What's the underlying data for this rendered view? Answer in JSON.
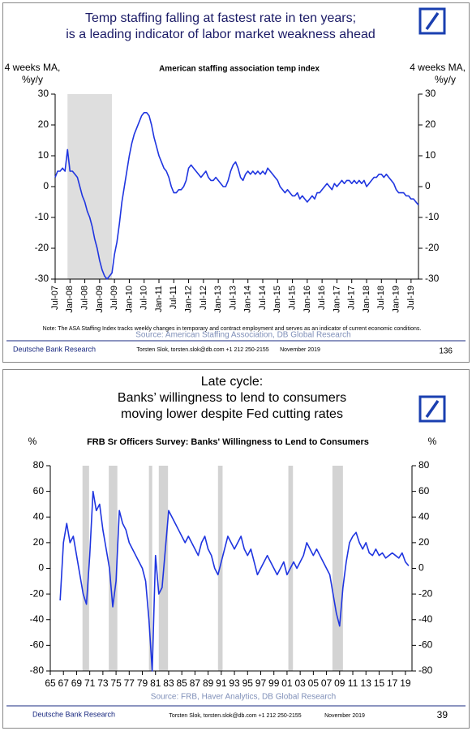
{
  "chart_data": [
    {
      "type": "line",
      "title": [
        "Temp staffing falling at fastest rate in ten years;",
        "is a leading indicator of labor market weakness ahead"
      ],
      "subtitle": "American staffing association temp index",
      "y_label": [
        "4 weeks MA,",
        "%y/y"
      ],
      "y2_label": [
        "4 weeks MA,",
        "%y/y"
      ],
      "note": "Note: The ASA Staffing Index tracks weekly changes in temporary and contract employment and serves as an indicator of current economic conditions.",
      "source": "Source: American Staffing Association, DB Global Research",
      "footer": {
        "left": "Deutsche Bank Research",
        "author": "Torsten Slok, torsten.slok@db.com  +1 212 250-2155",
        "date": "November 2019",
        "page": "136"
      },
      "color": "#1f35e0",
      "shade_color": "#dedede",
      "recessions": [
        [
          "2007-12",
          "2009-06"
        ]
      ],
      "xlim": [
        "2007-07",
        "2019-10"
      ],
      "xticks": [
        {
          "value": "2007-07",
          "label": "Jul-07"
        },
        {
          "value": "2008-01",
          "label": "Jan-08"
        },
        {
          "value": "2008-07",
          "label": "Jul-08"
        },
        {
          "value": "2009-01",
          "label": "Jan-09"
        },
        {
          "value": "2009-07",
          "label": "Jul-09"
        },
        {
          "value": "2010-01",
          "label": "Jan-10"
        },
        {
          "value": "2010-07",
          "label": "Jul-10"
        },
        {
          "value": "2011-01",
          "label": "Jan-11"
        },
        {
          "value": "2011-07",
          "label": "Jul-11"
        },
        {
          "value": "2012-01",
          "label": "Jan-12"
        },
        {
          "value": "2012-07",
          "label": "Jul-12"
        },
        {
          "value": "2013-01",
          "label": "Jan-13"
        },
        {
          "value": "2013-07",
          "label": "Jul-13"
        },
        {
          "value": "2014-01",
          "label": "Jan-14"
        },
        {
          "value": "2014-07",
          "label": "Jul-14"
        },
        {
          "value": "2015-01",
          "label": "Jan-15"
        },
        {
          "value": "2015-07",
          "label": "Jul-15"
        },
        {
          "value": "2016-01",
          "label": "Jan-16"
        },
        {
          "value": "2016-07",
          "label": "Jul-16"
        },
        {
          "value": "2017-01",
          "label": "Jan-17"
        },
        {
          "value": "2017-07",
          "label": "Jul-17"
        },
        {
          "value": "2018-01",
          "label": "Jan-18"
        },
        {
          "value": "2018-07",
          "label": "Jul-18"
        },
        {
          "value": "2019-01",
          "label": "Jan-19"
        },
        {
          "value": "2019-07",
          "label": "Jul-19"
        }
      ],
      "x_label_rotation": -90,
      "ylim": [
        -30,
        30
      ],
      "yticks": [
        -30,
        -20,
        -10,
        0,
        10,
        20,
        30
      ],
      "x": [
        "2007-07",
        "2007-08",
        "2007-09",
        "2007-10",
        "2007-11",
        "2007-12",
        "2008-01",
        "2008-02",
        "2008-03",
        "2008-04",
        "2008-05",
        "2008-06",
        "2008-07",
        "2008-08",
        "2008-09",
        "2008-10",
        "2008-11",
        "2008-12",
        "2009-01",
        "2009-02",
        "2009-03",
        "2009-04",
        "2009-05",
        "2009-06",
        "2009-07",
        "2009-08",
        "2009-09",
        "2009-10",
        "2009-11",
        "2009-12",
        "2010-01",
        "2010-02",
        "2010-03",
        "2010-04",
        "2010-05",
        "2010-06",
        "2010-07",
        "2010-08",
        "2010-09",
        "2010-10",
        "2010-11",
        "2010-12",
        "2011-01",
        "2011-02",
        "2011-03",
        "2011-04",
        "2011-05",
        "2011-06",
        "2011-07",
        "2011-08",
        "2011-09",
        "2011-10",
        "2011-11",
        "2011-12",
        "2012-01",
        "2012-02",
        "2012-03",
        "2012-04",
        "2012-05",
        "2012-06",
        "2012-07",
        "2012-08",
        "2012-09",
        "2012-10",
        "2012-11",
        "2012-12",
        "2013-01",
        "2013-02",
        "2013-03",
        "2013-04",
        "2013-05",
        "2013-06",
        "2013-07",
        "2013-08",
        "2013-09",
        "2013-10",
        "2013-11",
        "2013-12",
        "2014-01",
        "2014-02",
        "2014-03",
        "2014-04",
        "2014-05",
        "2014-06",
        "2014-07",
        "2014-08",
        "2014-09",
        "2014-10",
        "2014-11",
        "2014-12",
        "2015-01",
        "2015-02",
        "2015-03",
        "2015-04",
        "2015-05",
        "2015-06",
        "2015-07",
        "2015-08",
        "2015-09",
        "2015-10",
        "2015-11",
        "2015-12",
        "2016-01",
        "2016-02",
        "2016-03",
        "2016-04",
        "2016-05",
        "2016-06",
        "2016-07",
        "2016-08",
        "2016-09",
        "2016-10",
        "2016-11",
        "2016-12",
        "2017-01",
        "2017-02",
        "2017-03",
        "2017-04",
        "2017-05",
        "2017-06",
        "2017-07",
        "2017-08",
        "2017-09",
        "2017-10",
        "2017-11",
        "2017-12",
        "2018-01",
        "2018-02",
        "2018-03",
        "2018-04",
        "2018-05",
        "2018-06",
        "2018-07",
        "2018-08",
        "2018-09",
        "2018-10",
        "2018-11",
        "2018-12",
        "2019-01",
        "2019-02",
        "2019-03",
        "2019-04",
        "2019-05",
        "2019-06",
        "2019-07",
        "2019-08",
        "2019-09",
        "2019-10"
      ],
      "values": [
        3,
        5,
        5,
        6,
        5,
        12,
        5,
        5,
        4,
        3,
        0,
        -3,
        -5,
        -8,
        -10,
        -13,
        -17,
        -20,
        -24,
        -27,
        -29,
        -30,
        -29,
        -28,
        -22,
        -18,
        -12,
        -5,
        0,
        5,
        10,
        14,
        17,
        19,
        21,
        23,
        24,
        24,
        23,
        20,
        16,
        13,
        10,
        8,
        6,
        5,
        3,
        0,
        -2,
        -2,
        -1,
        -1,
        0,
        2,
        6,
        7,
        6,
        5,
        4,
        3,
        4,
        5,
        3,
        2,
        2,
        3,
        2,
        1,
        0,
        0,
        2,
        5,
        7,
        8,
        6,
        3,
        2,
        4,
        5,
        4,
        5,
        4,
        5,
        4,
        5,
        4,
        6,
        5,
        4,
        3,
        2,
        0,
        -1,
        -2,
        -1,
        -2,
        -3,
        -3,
        -2,
        -4,
        -3,
        -4,
        -5,
        -4,
        -3,
        -4,
        -2,
        -2,
        -1,
        0,
        1,
        0,
        -1,
        1,
        0,
        1,
        2,
        1,
        2,
        2,
        1,
        2,
        1,
        2,
        1,
        2,
        0,
        1,
        2,
        3,
        3,
        4,
        4,
        3,
        4,
        3,
        2,
        1,
        -1,
        -2,
        -2,
        -2,
        -3,
        -3,
        -4,
        -4,
        -5,
        -6
      ]
    },
    {
      "type": "line",
      "title": [
        "Late cycle:",
        "Banks’ willingness to lend to consumers",
        "moving lower despite Fed cutting rates"
      ],
      "subtitle": "FRB Sr Officers Survey: Banks' Willingness to Lend to Consumers",
      "y_label": [
        "%"
      ],
      "y2_label": [
        "%"
      ],
      "source": "Source: FRB, Haver Analytics, DB Global Research",
      "footer": {
        "left": "Deutsche Bank Research",
        "author": "Torsten Slok, torsten.slok@db.com  +1 212 250-2155",
        "date": "November 2019",
        "page": "39"
      },
      "color": "#1f35e0",
      "shade_color": "#d3d3d3",
      "recessions": [
        [
          1969.9,
          1970.9
        ],
        [
          1973.9,
          1975.2
        ],
        [
          1980.0,
          1980.5
        ],
        [
          1981.5,
          1982.9
        ],
        [
          1990.5,
          1991.2
        ],
        [
          2001.2,
          2001.9
        ],
        [
          2007.9,
          2009.5
        ]
      ],
      "xlim": [
        1965,
        2020
      ],
      "xticks": [
        {
          "value": 1965,
          "label": "65"
        },
        {
          "value": 1967,
          "label": "67"
        },
        {
          "value": 1969,
          "label": "69"
        },
        {
          "value": 1971,
          "label": "71"
        },
        {
          "value": 1973,
          "label": "73"
        },
        {
          "value": 1975,
          "label": "75"
        },
        {
          "value": 1977,
          "label": "77"
        },
        {
          "value": 1979,
          "label": "79"
        },
        {
          "value": 1981,
          "label": "81"
        },
        {
          "value": 1983,
          "label": "83"
        },
        {
          "value": 1985,
          "label": "85"
        },
        {
          "value": 1987,
          "label": "87"
        },
        {
          "value": 1989,
          "label": "89"
        },
        {
          "value": 1991,
          "label": "91"
        },
        {
          "value": 1993,
          "label": "93"
        },
        {
          "value": 1995,
          "label": "95"
        },
        {
          "value": 1997,
          "label": "97"
        },
        {
          "value": 1999,
          "label": "99"
        },
        {
          "value": 2001,
          "label": "01"
        },
        {
          "value": 2003,
          "label": "03"
        },
        {
          "value": 2005,
          "label": "05"
        },
        {
          "value": 2007,
          "label": "07"
        },
        {
          "value": 2009,
          "label": "09"
        },
        {
          "value": 2011,
          "label": "11"
        },
        {
          "value": 2013,
          "label": "13"
        },
        {
          "value": 2015,
          "label": "15"
        },
        {
          "value": 2017,
          "label": "17"
        },
        {
          "value": 2019,
          "label": "19"
        }
      ],
      "x_label_rotation": 0,
      "ylim": [
        -80,
        80
      ],
      "yticks": [
        -80,
        -60,
        -40,
        -20,
        0,
        20,
        40,
        60,
        80
      ],
      "x": [
        1966.5,
        1967,
        1967.5,
        1968,
        1968.5,
        1969,
        1969.5,
        1970,
        1970.5,
        1971,
        1971.5,
        1972,
        1972.5,
        1973,
        1973.5,
        1974,
        1974.5,
        1975,
        1975.5,
        1976,
        1976.5,
        1977,
        1977.5,
        1978,
        1978.5,
        1979,
        1979.5,
        1980,
        1980.5,
        1981,
        1981.5,
        1982,
        1982.5,
        1983,
        1983.5,
        1984,
        1984.5,
        1985,
        1985.5,
        1986,
        1986.5,
        1987,
        1987.5,
        1988,
        1988.5,
        1989,
        1989.5,
        1990,
        1990.5,
        1991,
        1991.5,
        1992,
        1992.5,
        1993,
        1993.5,
        1994,
        1994.5,
        1995,
        1995.5,
        1996,
        1996.5,
        1997,
        1997.5,
        1998,
        1998.5,
        1999,
        1999.5,
        2000,
        2000.5,
        2001,
        2001.5,
        2002,
        2002.5,
        2003,
        2003.5,
        2004,
        2004.5,
        2005,
        2005.5,
        2006,
        2006.5,
        2007,
        2007.5,
        2008,
        2008.5,
        2009,
        2009.5,
        2010,
        2010.5,
        2011,
        2011.5,
        2012,
        2012.5,
        2013,
        2013.5,
        2014,
        2014.5,
        2015,
        2015.5,
        2016,
        2016.5,
        2017,
        2017.5,
        2018,
        2018.5,
        2019,
        2019.5
      ],
      "values": [
        -25,
        20,
        35,
        20,
        25,
        10,
        -5,
        -20,
        -28,
        10,
        60,
        45,
        50,
        30,
        15,
        0,
        -30,
        -10,
        45,
        35,
        30,
        20,
        15,
        10,
        5,
        0,
        -10,
        -40,
        -80,
        10,
        -20,
        -15,
        15,
        45,
        40,
        35,
        30,
        25,
        20,
        25,
        20,
        15,
        10,
        20,
        25,
        15,
        10,
        0,
        -5,
        5,
        15,
        25,
        20,
        15,
        20,
        25,
        15,
        10,
        15,
        5,
        -5,
        0,
        5,
        10,
        5,
        0,
        -5,
        0,
        5,
        -5,
        0,
        5,
        0,
        5,
        10,
        20,
        15,
        10,
        15,
        10,
        5,
        0,
        -5,
        -20,
        -35,
        -45,
        -15,
        5,
        20,
        25,
        28,
        20,
        15,
        20,
        12,
        10,
        15,
        10,
        12,
        8,
        10,
        12,
        10,
        8,
        12,
        5,
        2
      ]
    }
  ]
}
